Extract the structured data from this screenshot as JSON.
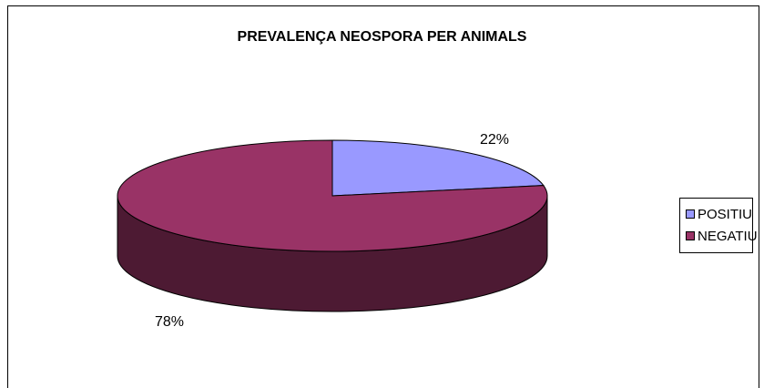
{
  "chart_data": {
    "type": "pie",
    "title": "PREVALENÇA NEOSPORA PER ANIMALS",
    "slices": [
      {
        "name": "POSITIU",
        "value": 22,
        "label": "22%",
        "color": "#9999ff"
      },
      {
        "name": "NEGATIU",
        "value": 78,
        "label": "78%",
        "color": "#993366"
      }
    ],
    "legend": "right",
    "style": "3d"
  }
}
